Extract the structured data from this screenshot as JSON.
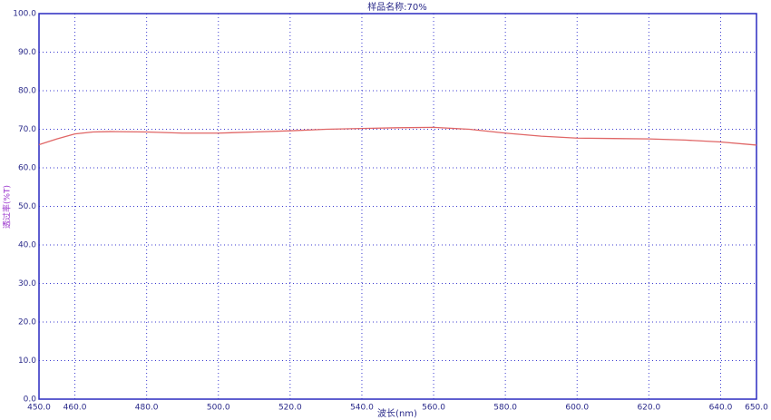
{
  "chart_data": {
    "type": "line",
    "title": "样品名称:70%",
    "x_label": "波长(nm)",
    "y_label": "透过率(%T)",
    "x": [
      450,
      455,
      460,
      465,
      470,
      480,
      490,
      500,
      510,
      520,
      530,
      540,
      550,
      560,
      570,
      580,
      590,
      600,
      610,
      620,
      630,
      640,
      650
    ],
    "series": [
      {
        "name": "70%",
        "color": "#e06666",
        "values": [
          66.0,
          67.5,
          68.8,
          69.3,
          69.4,
          69.3,
          69.0,
          69.0,
          69.3,
          69.6,
          70.0,
          70.2,
          70.4,
          70.5,
          70.0,
          69.0,
          68.2,
          67.7,
          67.6,
          67.5,
          67.2,
          66.7,
          65.9
        ]
      }
    ],
    "xlim": [
      450,
      650
    ],
    "xticks": [
      {
        "value": 450,
        "label": "450.0"
      },
      {
        "value": 460,
        "label": "460.0"
      },
      {
        "value": 480,
        "label": "480.0"
      },
      {
        "value": 500,
        "label": "500.0"
      },
      {
        "value": 520,
        "label": "520.0"
      },
      {
        "value": 540,
        "label": "540.0"
      },
      {
        "value": 560,
        "label": "560.0"
      },
      {
        "value": 580,
        "label": "580.0"
      },
      {
        "value": 600,
        "label": "600.0"
      },
      {
        "value": 620,
        "label": "620.0"
      },
      {
        "value": 640,
        "label": "640.0"
      },
      {
        "value": 650,
        "label": "650.0"
      }
    ],
    "ylim": [
      0,
      100
    ],
    "yticks": [
      {
        "value": 0,
        "label": "0.0"
      },
      {
        "value": 10,
        "label": "10.0"
      },
      {
        "value": 20,
        "label": "20.0"
      },
      {
        "value": 30,
        "label": "30.0"
      },
      {
        "value": 40,
        "label": "40.0"
      },
      {
        "value": 50,
        "label": "50.0"
      },
      {
        "value": 60,
        "label": "60.0"
      },
      {
        "value": 70,
        "label": "70.0"
      },
      {
        "value": 80,
        "label": "80.0"
      },
      {
        "value": 90,
        "label": "90.0"
      },
      {
        "value": 100,
        "label": "100.0"
      }
    ],
    "grid": true
  }
}
